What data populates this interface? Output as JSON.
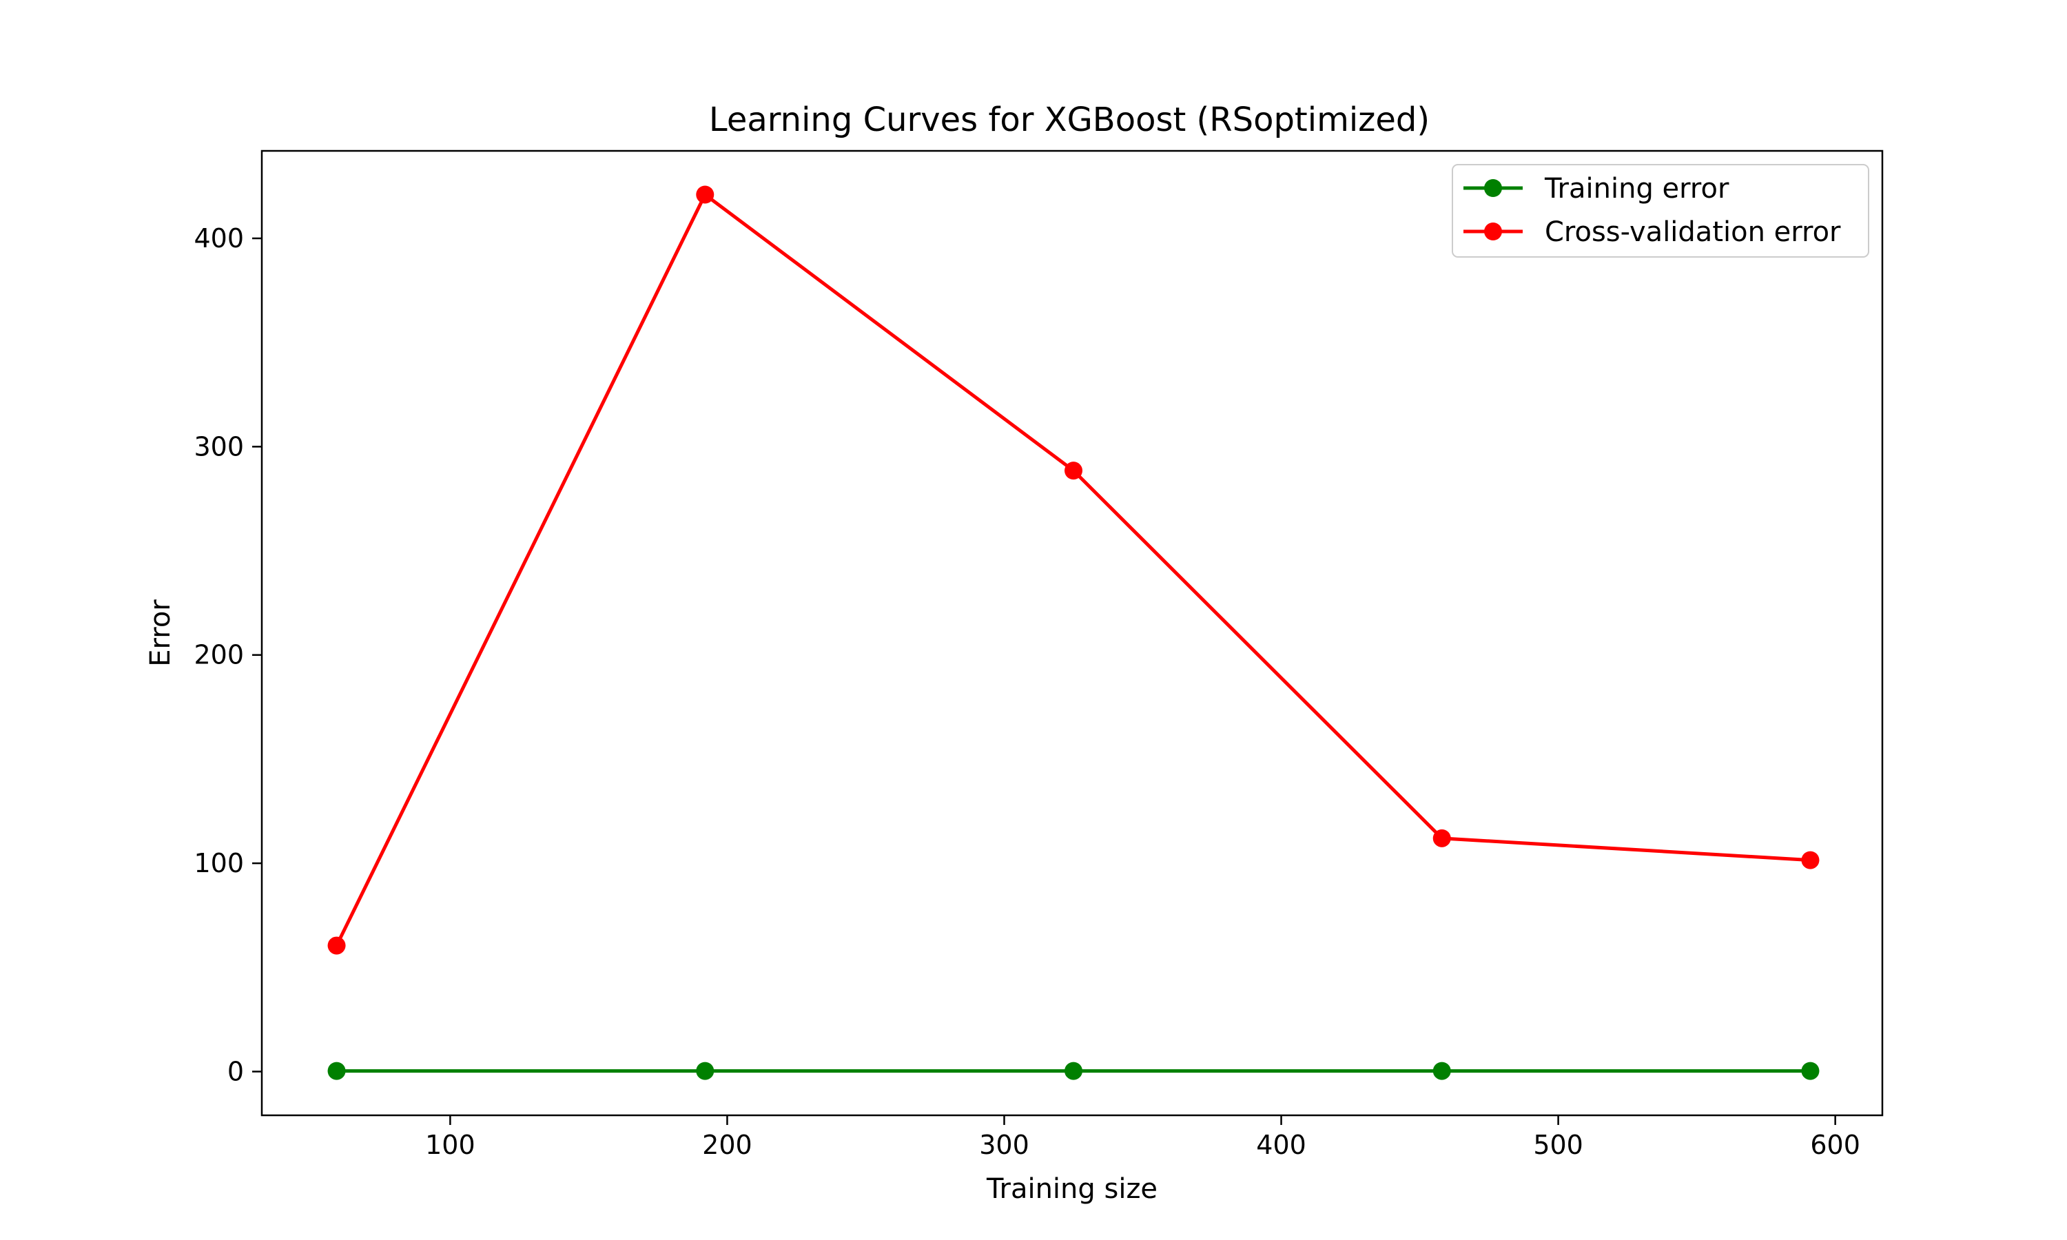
{
  "chart_data": {
    "type": "line",
    "title": "Learning Curves for XGBoost (RSoptimized)",
    "xlabel": "Training size",
    "ylabel": "Error",
    "x": [
      59,
      192,
      325,
      458,
      591
    ],
    "series": [
      {
        "name": "Training error",
        "values": [
          0.3,
          0.3,
          0.3,
          0.3,
          0.3
        ],
        "color": "#008000"
      },
      {
        "name": "Cross-validation error",
        "values": [
          60.5,
          421,
          288.5,
          112,
          101.5
        ],
        "color": "#ff0000"
      }
    ],
    "xlim": [
      32,
      617
    ],
    "ylim": [
      -21,
      442
    ],
    "xticks": [
      100,
      200,
      300,
      400,
      500,
      600
    ],
    "yticks": [
      0,
      100,
      200,
      300,
      400
    ],
    "grid": false,
    "legend_position": "top-right"
  }
}
